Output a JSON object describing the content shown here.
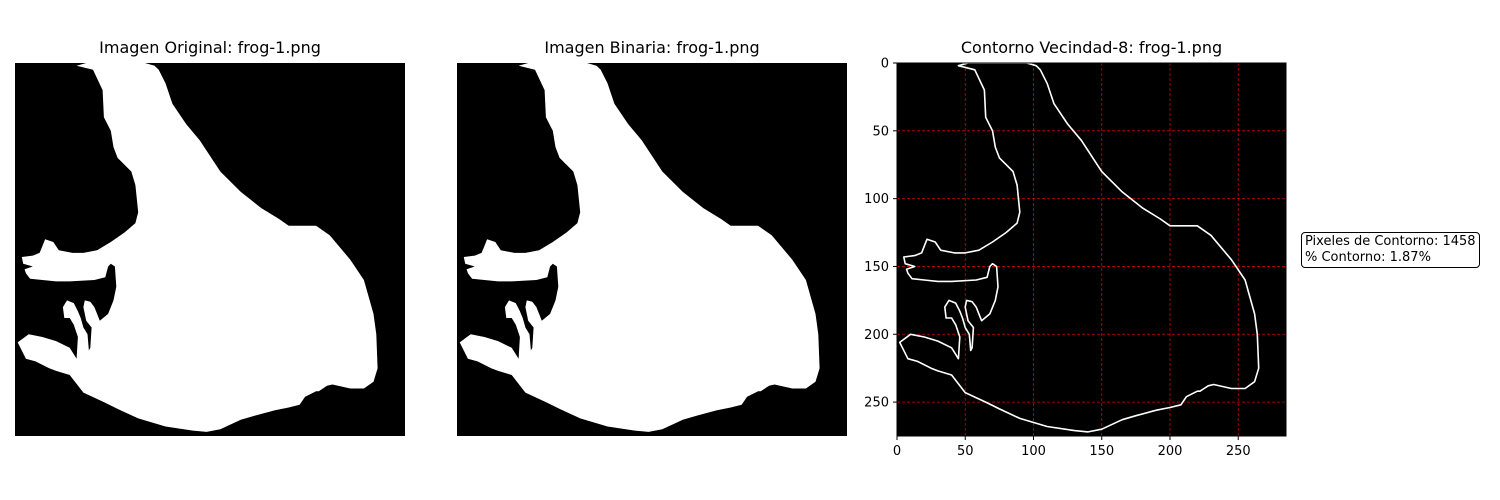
{
  "panels": [
    {
      "title": "Imagen Original: frog-1.png"
    },
    {
      "title": "Imagen Binaria: frog-1.png"
    },
    {
      "title": "Contorno Vecindad-8: frog-1.png"
    }
  ],
  "stats": {
    "contour_pixels": "Pixeles de Contorno: 1458",
    "contour_percent": "% Contorno: 1.87%"
  },
  "colors": {
    "background": "#000000",
    "silhouette": "#ffffff",
    "contour": "#ffffff",
    "grid": "#ff0000"
  },
  "chart_data": [
    {
      "type": "image",
      "title": "Imagen Original: frog-1.png",
      "axes": "off"
    },
    {
      "type": "image",
      "title": "Imagen Binaria: frog-1.png",
      "axes": "off"
    },
    {
      "type": "image",
      "title": "Contorno Vecindad-8: frog-1.png",
      "xlim": [
        0,
        285
      ],
      "ylim": [
        275,
        0
      ],
      "x_ticks": [
        0,
        50,
        100,
        150,
        200,
        250
      ],
      "y_ticks": [
        0,
        50,
        100,
        150,
        200,
        250
      ],
      "grid": true,
      "grid_style": "dashed red",
      "contour_pixels": 1458,
      "contour_percent": 1.87,
      "contour_path": [
        [
          45,
          2
        ],
        [
          52,
          0
        ],
        [
          70,
          0
        ],
        [
          95,
          0
        ],
        [
          102,
          2
        ],
        [
          105,
          5
        ],
        [
          110,
          15
        ],
        [
          115,
          30
        ],
        [
          125,
          45
        ],
        [
          135,
          57
        ],
        [
          150,
          80
        ],
        [
          165,
          95
        ],
        [
          180,
          107
        ],
        [
          193,
          115
        ],
        [
          200,
          120
        ],
        [
          210,
          120
        ],
        [
          220,
          120
        ],
        [
          230,
          127
        ],
        [
          245,
          145
        ],
        [
          255,
          160
        ],
        [
          262,
          185
        ],
        [
          264,
          200
        ],
        [
          265,
          225
        ],
        [
          262,
          235
        ],
        [
          255,
          240
        ],
        [
          245,
          240
        ],
        [
          232,
          237
        ],
        [
          228,
          238
        ],
        [
          225,
          240
        ],
        [
          222,
          242
        ],
        [
          220,
          242
        ],
        [
          212,
          246
        ],
        [
          208,
          252
        ],
        [
          200,
          254
        ],
        [
          190,
          256
        ],
        [
          175,
          260
        ],
        [
          165,
          263
        ],
        [
          150,
          270
        ],
        [
          140,
          272
        ],
        [
          130,
          271
        ],
        [
          110,
          268
        ],
        [
          90,
          262
        ],
        [
          75,
          255
        ],
        [
          65,
          250
        ],
        [
          50,
          243
        ],
        [
          40,
          230
        ],
        [
          30,
          227
        ],
        [
          25,
          225
        ],
        [
          15,
          220
        ],
        [
          8,
          218
        ],
        [
          2,
          206
        ],
        [
          10,
          200
        ],
        [
          20,
          202
        ],
        [
          30,
          205
        ],
        [
          40,
          210
        ],
        [
          45,
          218
        ],
        [
          46,
          202
        ],
        [
          43,
          193
        ],
        [
          40,
          188
        ],
        [
          36,
          188
        ],
        [
          35,
          180
        ],
        [
          38,
          175
        ],
        [
          43,
          177
        ],
        [
          46,
          183
        ],
        [
          48,
          188
        ],
        [
          50,
          195
        ],
        [
          53,
          200
        ],
        [
          54,
          212
        ],
        [
          55,
          210
        ],
        [
          56,
          195
        ],
        [
          52,
          190
        ],
        [
          50,
          180
        ],
        [
          51,
          175
        ],
        [
          55,
          176
        ],
        [
          58,
          180
        ],
        [
          60,
          185
        ],
        [
          62,
          190
        ],
        [
          68,
          185
        ],
        [
          72,
          175
        ],
        [
          74,
          165
        ],
        [
          73,
          150
        ],
        [
          70,
          148
        ],
        [
          68,
          150
        ],
        [
          66,
          158
        ],
        [
          58,
          160
        ],
        [
          40,
          161
        ],
        [
          30,
          161
        ],
        [
          20,
          160
        ],
        [
          11,
          159
        ],
        [
          8,
          155
        ],
        [
          7,
          152
        ],
        [
          13,
          150
        ],
        [
          6,
          148
        ],
        [
          5,
          143
        ],
        [
          13,
          142
        ],
        [
          18,
          140
        ],
        [
          20,
          135
        ],
        [
          22,
          130
        ],
        [
          28,
          132
        ],
        [
          32,
          138
        ],
        [
          42,
          140
        ],
        [
          50,
          140
        ],
        [
          60,
          138
        ],
        [
          70,
          132
        ],
        [
          80,
          125
        ],
        [
          88,
          118
        ],
        [
          90,
          110
        ],
        [
          88,
          90
        ],
        [
          85,
          80
        ],
        [
          80,
          75
        ],
        [
          75,
          70
        ],
        [
          72,
          62
        ],
        [
          70,
          50
        ],
        [
          65,
          40
        ],
        [
          64,
          20
        ],
        [
          57,
          5
        ]
      ]
    }
  ]
}
